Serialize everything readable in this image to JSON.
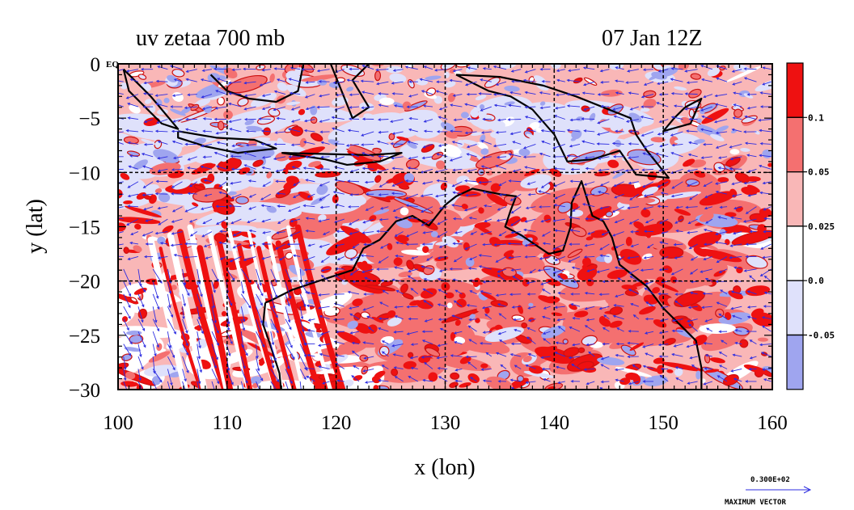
{
  "chart_data": {
    "type": "heatmap",
    "title": "uv zetaa 700 mb",
    "subtitle": "07 Jan 12Z",
    "xlabel": "x (lon)",
    "ylabel": "y (lat)",
    "xlim": [
      100,
      160
    ],
    "ylim": [
      -30,
      0
    ],
    "x_ticks": [
      100,
      110,
      120,
      130,
      140,
      150,
      160
    ],
    "y_ticks": [
      0,
      -5,
      -10,
      -15,
      -20,
      -25,
      -30
    ],
    "x_tick_labels": [
      "100",
      "110",
      "120",
      "130",
      "140",
      "150",
      "160"
    ],
    "y_tick_labels": [
      "0 EQ",
      "−5",
      "−10",
      "−15",
      "−20",
      "−25",
      "−30"
    ],
    "grid_x": [
      110,
      120,
      130,
      140,
      150
    ],
    "grid_y": [
      -10,
      -20
    ],
    "grid": true,
    "contour_levels": [
      "0.1",
      "0.05",
      "0.025",
      "0.0",
      "-0.05"
    ],
    "colorbar": [
      {
        "label": "",
        "color": "#ee1111"
      },
      {
        "label": "0.1",
        "color": "#f47070"
      },
      {
        "label": "0.05",
        "color": "#f9b7b7"
      },
      {
        "label": "0.025",
        "color": "#ffffff"
      },
      {
        "label": "0.0",
        "color": "#dfe1fb"
      },
      {
        "label": "-0.05",
        "color": "#9fa5ef"
      }
    ],
    "vector_field": {
      "color": "#2c2ce0"
    },
    "reference_vector": {
      "value_label": "0.300E+02",
      "caption": "MAXIMUM VECTOR"
    }
  }
}
